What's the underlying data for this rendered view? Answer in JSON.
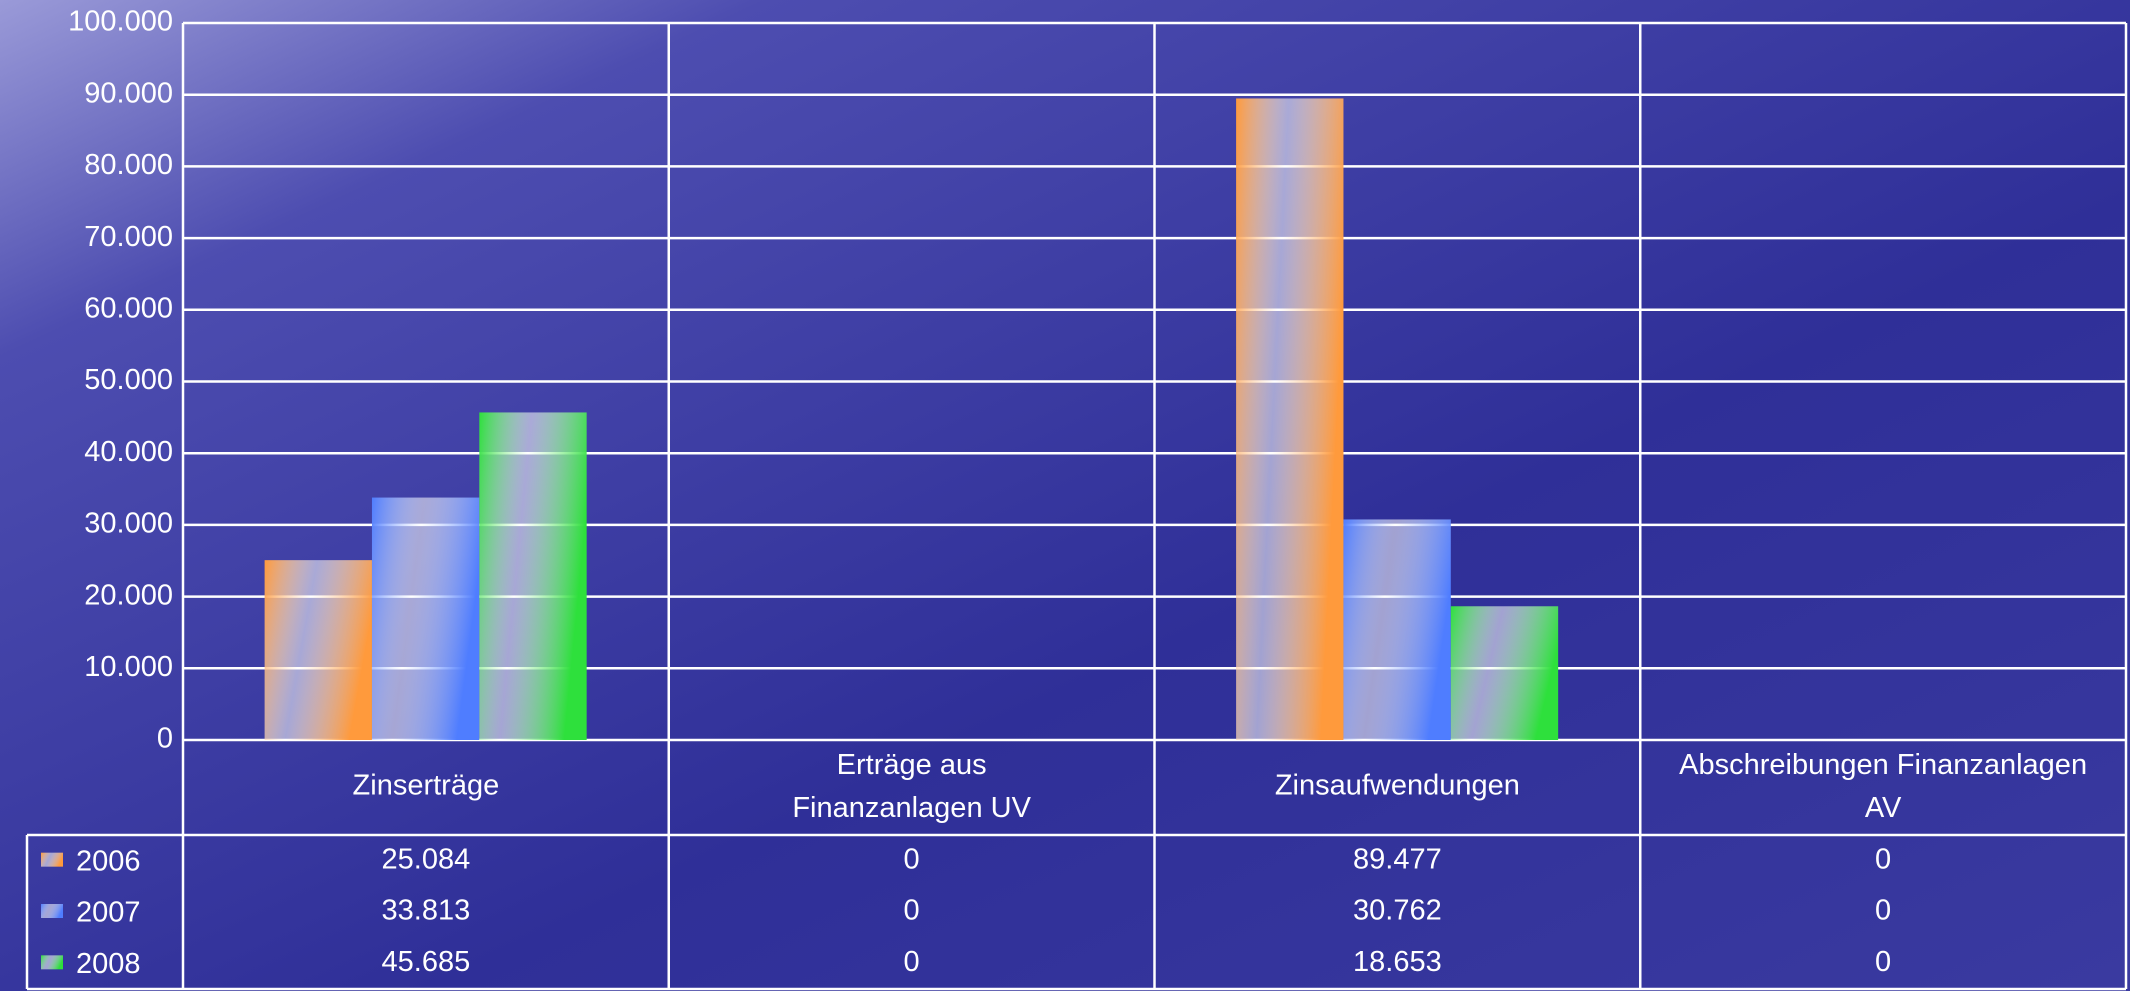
{
  "chart_data": {
    "type": "bar",
    "categories": [
      "Zinserträge",
      "Erträge aus Finanzanlagen UV",
      "Zinsaufwendungen",
      "Abschreibungen Finanzanlagen AV"
    ],
    "series": [
      {
        "name": "2006",
        "color": "#ff9a3c",
        "values": [
          25084,
          0,
          89477,
          0
        ],
        "value_labels": [
          "25.084",
          "0",
          "89.477",
          "0"
        ]
      },
      {
        "name": "2007",
        "color": "#4f7dff",
        "values": [
          33813,
          0,
          30762,
          0
        ],
        "value_labels": [
          "33.813",
          "0",
          "30.762",
          "0"
        ]
      },
      {
        "name": "2008",
        "color": "#2ee03c",
        "values": [
          45685,
          0,
          18653,
          0
        ],
        "value_labels": [
          "45.685",
          "0",
          "18.653",
          "0"
        ]
      }
    ],
    "ylim": [
      0,
      100000
    ],
    "yticks": [
      0,
      {
        "value": 10000,
        "label": "10.000"
      },
      {
        "value": 20000,
        "label": "20.000"
      },
      {
        "value": 30000,
        "label": "30.000"
      },
      {
        "value": 40000,
        "label": "40.000"
      },
      {
        "value": 50000,
        "label": "50.000"
      },
      {
        "value": 60000,
        "label": "60.000"
      },
      {
        "value": 70000,
        "label": "70.000"
      },
      {
        "value": 80000,
        "label": "80.000"
      },
      {
        "value": 90000,
        "label": "90.000"
      },
      {
        "value": 100000,
        "label": "100.000"
      }
    ],
    "grid": true
  }
}
